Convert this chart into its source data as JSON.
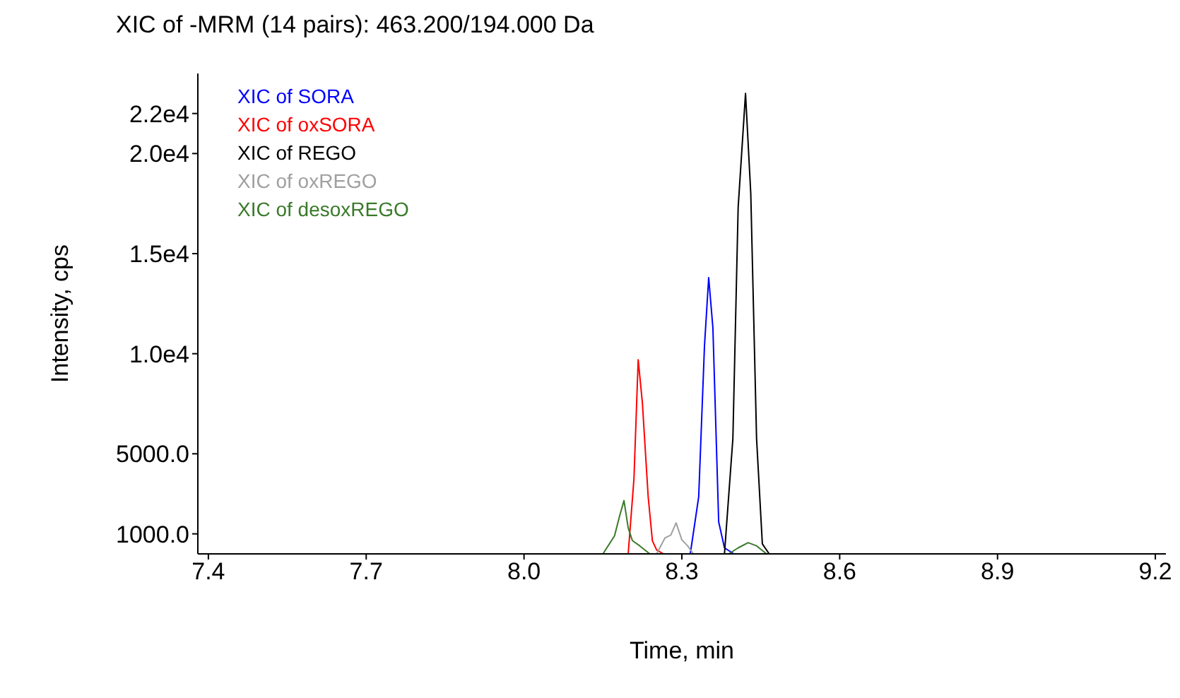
{
  "chart_data": {
    "type": "line",
    "title": "XIC of -MRM (14 pairs): 463.200/194.000 Da",
    "xlabel": "Time, min",
    "ylabel": "Intensity, cps",
    "xlim": [
      7.38,
      9.22
    ],
    "xticks": [
      7.4,
      7.7,
      {
        "value": 8,
        "label": "8.0"
      },
      8.3,
      8.6,
      8.9,
      9.2
    ],
    "ylim": [
      0,
      24000
    ],
    "yticks": [
      {
        "value": 1000,
        "label": "1000.0"
      },
      {
        "value": 5000,
        "label": "5000.0"
      },
      {
        "value": 10000,
        "label": "1.0e4"
      },
      {
        "value": 15000,
        "label": "1.5e4"
      },
      {
        "value": 20000,
        "label": "2.0e4"
      },
      {
        "value": 22000,
        "label": "2.2e4"
      }
    ],
    "grid": false,
    "legend": "top left",
    "series": [
      {
        "name": "XIC of SORA",
        "color": "#0000ff",
        "x": [
          8.316,
          8.332,
          8.343,
          8.351,
          8.359,
          8.37,
          8.381,
          8.399
        ],
        "values": [
          0,
          2850,
          10380,
          13800,
          11300,
          1600,
          300,
          0
        ]
      },
      {
        "name": "XIC of oxSORA",
        "color": "#ff0000",
        "x": [
          8.198,
          8.209,
          8.217,
          8.225,
          8.236,
          8.244,
          8.252,
          8.265
        ],
        "values": [
          0,
          3770,
          9700,
          7540,
          2850,
          660,
          200,
          0
        ]
      },
      {
        "name": "XIC of REGO",
        "color": "#000000",
        "x": [
          7.4,
          8.381,
          8.397,
          8.407,
          8.421,
          8.431,
          8.442,
          8.453,
          8.466,
          9.2
        ],
        "values": [
          0,
          0,
          5770,
          17300,
          23000,
          18000,
          5770,
          500,
          0,
          0
        ]
      },
      {
        "name": "XIC of oxREGO",
        "color": "#a0a0a0",
        "x": [
          8.252,
          8.268,
          8.279,
          8.289,
          8.3,
          8.311,
          8.322
        ],
        "values": [
          0,
          800,
          940,
          1550,
          700,
          400,
          0
        ]
      },
      {
        "name": "XIC of desoxREGO",
        "color": "#3a7a2a",
        "x": [
          8.15,
          8.172,
          8.182,
          8.19,
          8.198,
          8.206,
          8.22,
          8.239,
          null,
          8.389,
          8.407,
          8.426,
          8.442,
          8.461
        ],
        "values": [
          0,
          900,
          1920,
          2660,
          1300,
          660,
          400,
          0,
          null,
          0,
          300,
          560,
          400,
          0
        ]
      }
    ]
  }
}
